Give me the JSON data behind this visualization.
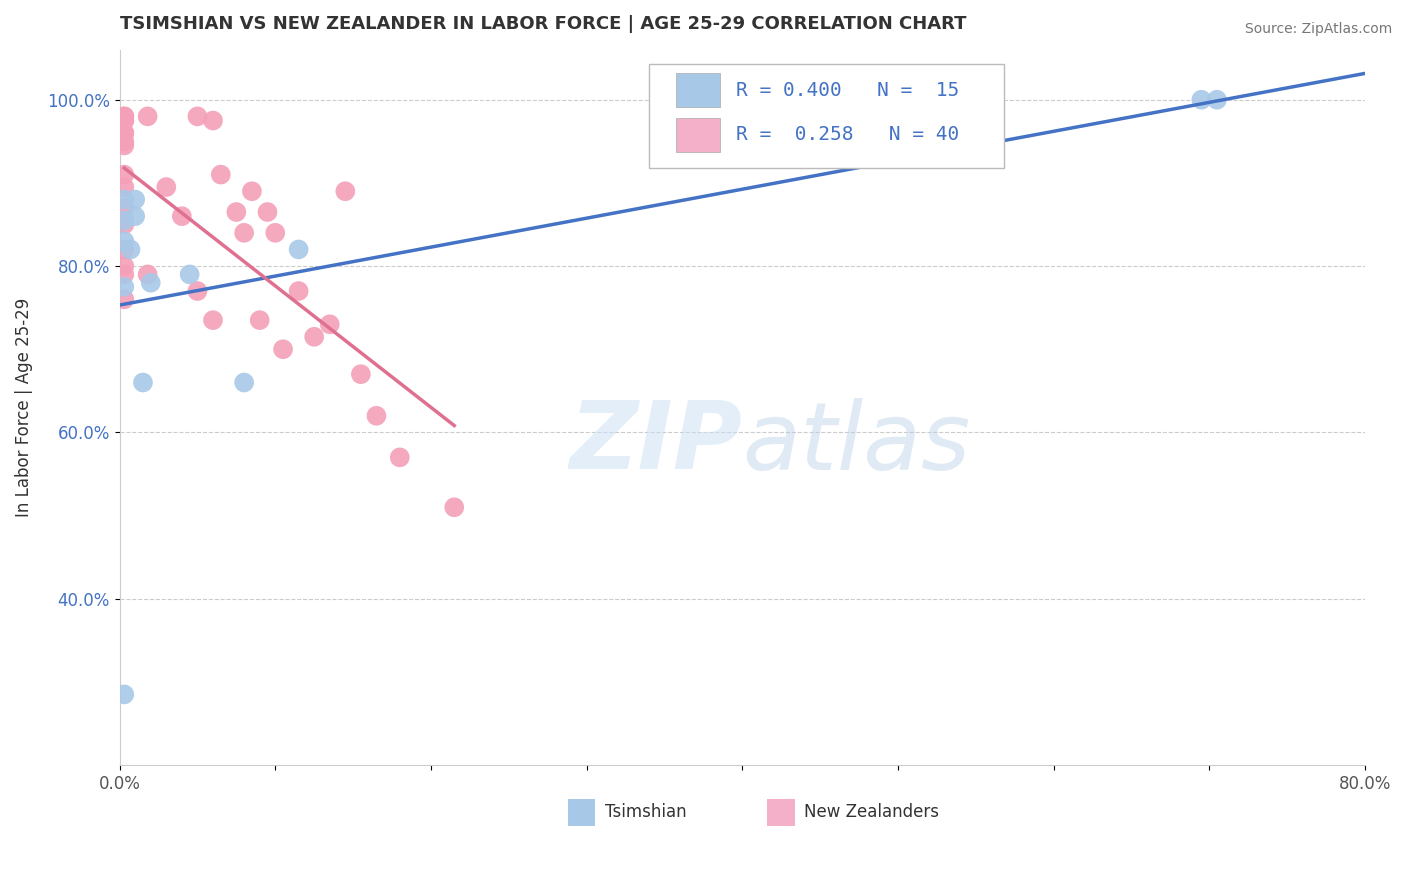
{
  "title": "TSIMSHIAN VS NEW ZEALANDER IN LABOR FORCE | AGE 25-29 CORRELATION CHART",
  "xlabel": "",
  "ylabel": "In Labor Force | Age 25-29",
  "source_text": "Source: ZipAtlas.com",
  "watermark_zip": "ZIP",
  "watermark_atlas": "atlas",
  "xlim": [
    0.0,
    0.8
  ],
  "ylim": [
    0.2,
    1.06
  ],
  "xticks": [
    0.0,
    0.1,
    0.2,
    0.3,
    0.4,
    0.5,
    0.6,
    0.7,
    0.8
  ],
  "xticklabels": [
    "0.0%",
    "",
    "",
    "",
    "",
    "",
    "",
    "",
    "80.0%"
  ],
  "yticks": [
    0.4,
    0.6,
    0.8,
    1.0
  ],
  "yticklabels": [
    "40.0%",
    "60.0%",
    "80.0%",
    "100.0%"
  ],
  "tsimshian_color": "#a8c8e8",
  "nz_color": "#f4a0b8",
  "tsimshian_line_color": "#4472c4",
  "nz_line_color": "#e07090",
  "legend_box1_color": "#a8c8e8",
  "legend_box2_color": "#f4b0c8",
  "tsimshian_x": [
    0.003,
    0.003,
    0.003,
    0.003,
    0.003,
    0.007,
    0.01,
    0.01,
    0.015,
    0.02,
    0.045,
    0.08,
    0.115,
    0.695,
    0.705
  ],
  "tsimshian_y": [
    0.285,
    0.775,
    0.83,
    0.855,
    0.88,
    0.82,
    0.86,
    0.88,
    0.66,
    0.78,
    0.79,
    0.66,
    0.82,
    1.0,
    1.0
  ],
  "nz_x": [
    0.003,
    0.003,
    0.003,
    0.003,
    0.003,
    0.003,
    0.003,
    0.003,
    0.003,
    0.003,
    0.003,
    0.003,
    0.003,
    0.003,
    0.003,
    0.003,
    0.018,
    0.018,
    0.03,
    0.04,
    0.05,
    0.05,
    0.06,
    0.06,
    0.065,
    0.075,
    0.08,
    0.085,
    0.09,
    0.095,
    0.1,
    0.105,
    0.115,
    0.125,
    0.135,
    0.145,
    0.155,
    0.165,
    0.18,
    0.215
  ],
  "nz_y": [
    0.98,
    0.98,
    0.975,
    0.975,
    0.96,
    0.96,
    0.95,
    0.945,
    0.91,
    0.895,
    0.87,
    0.85,
    0.82,
    0.8,
    0.79,
    0.76,
    0.98,
    0.79,
    0.895,
    0.86,
    0.98,
    0.77,
    0.975,
    0.735,
    0.91,
    0.865,
    0.84,
    0.89,
    0.735,
    0.865,
    0.84,
    0.7,
    0.77,
    0.715,
    0.73,
    0.89,
    0.67,
    0.62,
    0.57,
    0.51
  ],
  "background_color": "#ffffff",
  "grid_color": "#cccccc"
}
